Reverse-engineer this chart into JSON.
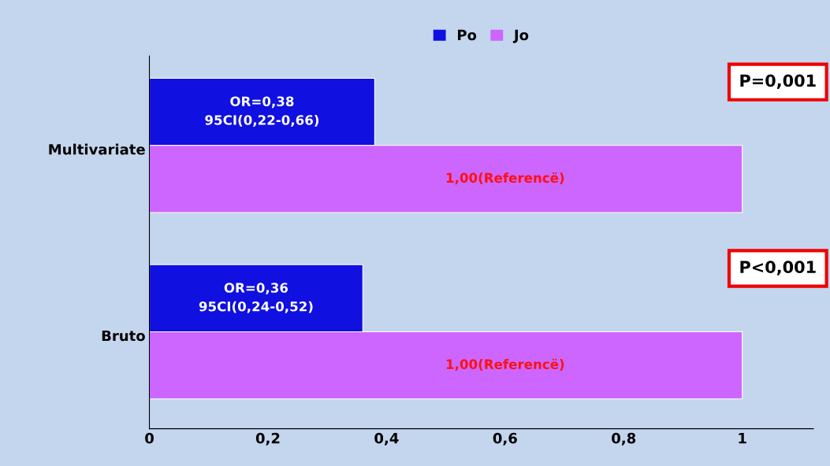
{
  "chart_data": {
    "type": "bar",
    "orientation": "horizontal",
    "categories": [
      "Multivariate",
      "Bruto"
    ],
    "series": [
      {
        "name": "Po",
        "color": "#1010e0",
        "values": [
          0.38,
          0.36
        ],
        "value_labels": [
          "OR=0,38\n95CI(0,22-0,66)",
          "OR=0,36\n95CI(0,24-0,52)"
        ]
      },
      {
        "name": "Jo",
        "color": "#cc66ff",
        "values": [
          1.0,
          1.0
        ],
        "value_labels": [
          "1,00(Referencë)",
          "1,00(Referencë)"
        ]
      }
    ],
    "xlim": [
      0,
      1.12
    ],
    "xticks": [
      0,
      {
        "value": 0.2,
        "label": "0,2"
      },
      {
        "value": 0.4,
        "label": "0,4"
      },
      {
        "value": 0.6,
        "label": "0,6"
      },
      {
        "value": 0.8,
        "label": "0,8"
      },
      1
    ],
    "annotations": [
      "P=0,001",
      "P<0,001"
    ],
    "legend": "top",
    "grid": false
  }
}
